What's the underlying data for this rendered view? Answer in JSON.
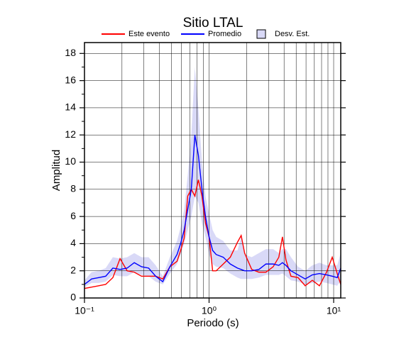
{
  "chart_data": {
    "type": "line",
    "title": "Sitio LTAL",
    "xlabel": "Periodo (s)",
    "ylabel": "Amplitud",
    "xscale": "log",
    "grid": true,
    "legend": "top",
    "xlim": [
      0.1,
      11.4
    ],
    "ylim": [
      0,
      18.8
    ],
    "xticks": [
      {
        "value": 0.1,
        "label": "10⁻¹"
      },
      {
        "value": 1,
        "label": "10⁰"
      },
      {
        "value": 10,
        "label": "10¹"
      }
    ],
    "yticks": [
      0,
      2,
      4,
      6,
      8,
      10,
      12,
      14,
      16,
      18
    ],
    "x": [
      0.1,
      0.114,
      0.13,
      0.148,
      0.169,
      0.193,
      0.22,
      0.251,
      0.287,
      0.327,
      0.373,
      0.425,
      0.485,
      0.553,
      0.591,
      0.631,
      0.674,
      0.72,
      0.769,
      0.821,
      0.877,
      0.936,
      1.0,
      1.068,
      1.14,
      1.3,
      1.48,
      1.69,
      1.81,
      1.93,
      2.2,
      2.51,
      2.86,
      3.27,
      3.63,
      3.88,
      4.14,
      4.54,
      5.18,
      5.91,
      6.74,
      7.69,
      8.77,
      9.74,
      10.68,
      11.4
    ],
    "series": [
      {
        "name": "Este evento",
        "color": "#ff0000",
        "values": [
          0.7,
          0.8,
          0.9,
          1.0,
          1.5,
          2.9,
          2.0,
          1.9,
          1.6,
          1.6,
          1.6,
          1.4,
          2.3,
          2.7,
          3.5,
          4.4,
          7.5,
          8.0,
          7.5,
          8.7,
          7.5,
          5.5,
          4.5,
          2.0,
          2.0,
          2.5,
          3.0,
          4.1,
          4.6,
          3.3,
          2.1,
          1.9,
          1.9,
          2.3,
          3.0,
          4.5,
          2.8,
          1.6,
          1.5,
          0.9,
          1.3,
          0.9,
          1.9,
          3.0,
          1.8,
          1.0
        ]
      },
      {
        "name": "Promedio",
        "color": "#0000ff",
        "values": [
          1.0,
          1.4,
          1.5,
          1.6,
          2.2,
          2.1,
          2.2,
          2.6,
          2.3,
          2.2,
          1.6,
          1.2,
          2.3,
          3.2,
          4.0,
          5.0,
          6.5,
          8.0,
          12.0,
          10.5,
          8.0,
          6.0,
          4.5,
          3.5,
          3.2,
          3.0,
          2.5,
          2.2,
          2.1,
          2.0,
          2.0,
          2.1,
          2.5,
          2.5,
          2.4,
          2.6,
          2.4,
          2.0,
          1.7,
          1.4,
          1.7,
          1.8,
          1.7,
          1.6,
          1.5,
          2.2
        ]
      },
      {
        "name": "Desv. Est.",
        "color": "#d9d9f7",
        "lower": [
          0.8,
          1.1,
          1.1,
          1.2,
          1.7,
          1.6,
          1.6,
          1.9,
          1.7,
          1.6,
          1.2,
          1.0,
          1.8,
          2.5,
          3.2,
          4.0,
          5.0,
          6.0,
          7.5,
          7.0,
          5.5,
          4.5,
          3.2,
          2.5,
          2.3,
          2.2,
          1.8,
          1.5,
          1.4,
          1.4,
          1.4,
          1.5,
          1.7,
          1.7,
          1.7,
          1.8,
          1.6,
          1.3,
          1.2,
          1.0,
          1.1,
          1.2,
          1.1,
          1.0,
          0.9,
          1.3
        ],
        "upper": [
          1.3,
          1.9,
          2.0,
          2.2,
          3.0,
          2.9,
          3.0,
          3.3,
          3.0,
          3.0,
          2.4,
          1.6,
          3.0,
          4.2,
          5.2,
          6.5,
          9.0,
          12.0,
          17.0,
          14.0,
          10.0,
          7.5,
          6.2,
          5.0,
          4.5,
          4.2,
          3.5,
          3.5,
          4.5,
          3.2,
          3.0,
          3.3,
          3.6,
          3.6,
          3.3,
          3.6,
          3.6,
          3.0,
          2.3,
          2.0,
          2.4,
          2.6,
          2.4,
          2.4,
          2.4,
          3.3
        ]
      }
    ]
  }
}
